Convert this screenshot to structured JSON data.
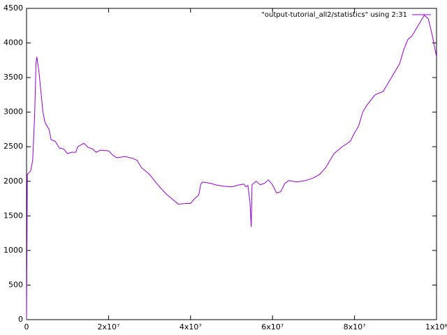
{
  "chart_data": {
    "type": "line",
    "x": [
      0,
      200000,
      1000000,
      1500000,
      2000000,
      2300000,
      2500000,
      3000000,
      3500000,
      4000000,
      4500000,
      5500000,
      6000000,
      7000000,
      8000000,
      9000000,
      10000000,
      11000000,
      12000000,
      12500000,
      14000000,
      15000000,
      16000000,
      17000000,
      18000000,
      20000000,
      21000000,
      22000000,
      24000000,
      26000000,
      27000000,
      28000000,
      30000000,
      32000000,
      34000000,
      36000000,
      37000000,
      39000000,
      40000000,
      41000000,
      42000000,
      42500000,
      43000000,
      45000000,
      46000000,
      48000000,
      50000000,
      52000000,
      53000000,
      53500000,
      54000000,
      54500000,
      54800000,
      55000000,
      56000000,
      57000000,
      58000000,
      59000000,
      60000000,
      61000000,
      62000000,
      63000000,
      64000000,
      66000000,
      68000000,
      70000000,
      71500000,
      73000000,
      74000000,
      75000000,
      77000000,
      79000000,
      80000000,
      81000000,
      82000000,
      83000000,
      85000000,
      87000000,
      89000000,
      91000000,
      92000000,
      93000000,
      94000000,
      95000000,
      96000000,
      97000000,
      98000000,
      99000000,
      100000000
    ],
    "series": [
      {
        "name": "\"output-tutorial_all2/statistics\" using 2:31",
        "color": "#9400d3",
        "values": [
          0,
          2100,
          2150,
          2300,
          3000,
          3700,
          3800,
          3600,
          3300,
          3000,
          2850,
          2750,
          2600,
          2580,
          2480,
          2470,
          2400,
          2420,
          2420,
          2500,
          2550,
          2490,
          2470,
          2420,
          2450,
          2440,
          2380,
          2340,
          2360,
          2330,
          2300,
          2200,
          2100,
          1950,
          1820,
          1720,
          1670,
          1680,
          1680,
          1750,
          1800,
          1960,
          1990,
          1970,
          1950,
          1930,
          1920,
          1950,
          1960,
          1920,
          1940,
          1700,
          1340,
          1950,
          2000,
          1950,
          1970,
          2020,
          1950,
          1830,
          1850,
          1970,
          2010,
          1990,
          2010,
          2050,
          2100,
          2200,
          2300,
          2400,
          2500,
          2580,
          2700,
          2800,
          3000,
          3100,
          3250,
          3300,
          3500,
          3700,
          3900,
          4050,
          4100,
          4200,
          4300,
          4400,
          4350,
          4100,
          3800
        ]
      }
    ],
    "xlim": [
      0,
      100000000
    ],
    "xticks": [
      0,
      {
        "value": 20000000,
        "label": "2x10⁷"
      },
      {
        "value": 40000000,
        "label": "4x10⁷"
      },
      {
        "value": 60000000,
        "label": "6x10⁷"
      },
      {
        "value": 80000000,
        "label": "8x10⁷"
      },
      {
        "value": 100000000,
        "label": "1x10⁸"
      }
    ],
    "ylim": [
      0,
      4500
    ],
    "yticks": [
      0,
      500,
      1000,
      1500,
      2000,
      2500,
      3000,
      3500,
      4000,
      4500
    ],
    "legend": "upper right",
    "grid": false
  }
}
